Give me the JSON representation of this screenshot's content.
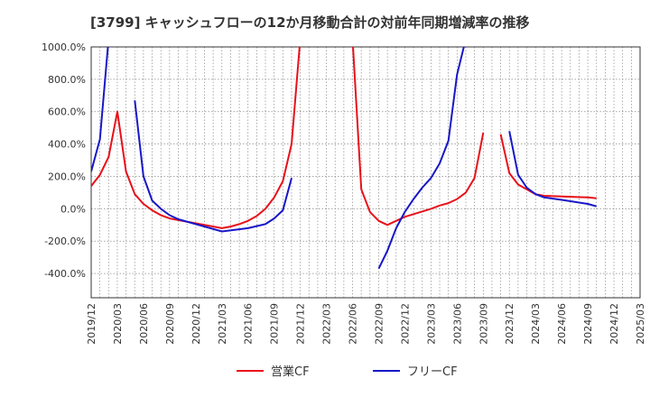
{
  "title": "[3799]  キャッシュフローの12か月移動合計の対前年同期増減率の推移",
  "chart_data": {
    "type": "line",
    "title": "[3799]  キャッシュフローの12か月移動合計の対前年同期増減率の推移",
    "xlabel": "",
    "ylabel": "",
    "grid": true,
    "legend_position": "bottom",
    "ylim": [
      -550,
      1000
    ],
    "y_ticks": [
      1000,
      800,
      600,
      400,
      200,
      0,
      -200,
      -400
    ],
    "y_tick_labels": [
      "1000.0%",
      "800.0%",
      "600.0%",
      "400.0%",
      "200.0%",
      "0.0%",
      "-200.0%",
      "-400.0%"
    ],
    "x_ticks": [
      "2019/12",
      "2020/03",
      "2020/06",
      "2020/09",
      "2020/12",
      "2021/03",
      "2021/06",
      "2021/09",
      "2021/12",
      "2022/03",
      "2022/06",
      "2022/09",
      "2022/12",
      "2023/03",
      "2023/06",
      "2023/09",
      "2023/12",
      "2024/03",
      "2024/06",
      "2024/09",
      "2024/12",
      "2025/03"
    ],
    "x_start": "2019/12",
    "x_end": "2025/03",
    "series": [
      {
        "name": "営業CF",
        "color": "#e8101a",
        "points": [
          [
            "2019/12",
            140
          ],
          [
            "2020/01",
            210
          ],
          [
            "2020/02",
            320
          ],
          [
            "2020/03",
            600
          ],
          [
            "2020/04",
            230
          ],
          [
            "2020/05",
            90
          ],
          [
            "2020/06",
            30
          ],
          [
            "2020/07",
            -10
          ],
          [
            "2020/08",
            -40
          ],
          [
            "2020/09",
            -60
          ],
          [
            "2020/12",
            -90
          ],
          [
            "2021/03",
            -120
          ],
          [
            "2021/04",
            -110
          ],
          [
            "2021/05",
            -95
          ],
          [
            "2021/06",
            -75
          ],
          [
            "2021/07",
            -45
          ],
          [
            "2021/08",
            0
          ],
          [
            "2021/09",
            70
          ],
          [
            "2021/10",
            170
          ],
          [
            "2021/11",
            400
          ],
          [
            "2021/12",
            1050
          ],
          null,
          [
            "2022/06",
            1050
          ],
          [
            "2022/07",
            120
          ],
          [
            "2022/08",
            -20
          ],
          [
            "2022/09",
            -75
          ],
          [
            "2022/10",
            -100
          ],
          [
            "2022/12",
            -50
          ],
          [
            "2023/03",
            0
          ],
          [
            "2023/04",
            20
          ],
          [
            "2023/05",
            35
          ],
          [
            "2023/06",
            60
          ],
          [
            "2023/07",
            100
          ],
          [
            "2023/08",
            190
          ],
          [
            "2023/09",
            470
          ],
          null,
          [
            "2023/11",
            460
          ],
          [
            "2023/12",
            220
          ],
          [
            "2024/01",
            150
          ],
          [
            "2024/03",
            90
          ],
          [
            "2024/04",
            80
          ],
          [
            "2024/09",
            70
          ],
          [
            "2024/10",
            65
          ]
        ]
      },
      {
        "name": "フリーCF",
        "color": "#1717c8",
        "points": [
          [
            "2019/12",
            230
          ],
          [
            "2020/01",
            430
          ],
          [
            "2020/02",
            1050
          ],
          null,
          [
            "2020/05",
            670
          ],
          [
            "2020/06",
            200
          ],
          [
            "2020/07",
            50
          ],
          [
            "2020/08",
            0
          ],
          [
            "2020/09",
            -40
          ],
          [
            "2020/10",
            -65
          ],
          [
            "2021/03",
            -140
          ],
          [
            "2021/06",
            -120
          ],
          [
            "2021/08",
            -95
          ],
          [
            "2021/09",
            -60
          ],
          [
            "2021/10",
            -10
          ],
          [
            "2021/11",
            190
          ],
          null,
          [
            "2022/09",
            -370
          ],
          [
            "2022/10",
            -260
          ],
          [
            "2022/11",
            -120
          ],
          [
            "2022/12",
            -20
          ],
          [
            "2023/01",
            60
          ],
          [
            "2023/02",
            130
          ],
          [
            "2023/03",
            190
          ],
          [
            "2023/04",
            280
          ],
          [
            "2023/05",
            420
          ],
          [
            "2023/06",
            830
          ],
          [
            "2023/07",
            1050
          ],
          null,
          [
            "2023/12",
            480
          ],
          [
            "2024/01",
            210
          ],
          [
            "2024/02",
            130
          ],
          [
            "2024/03",
            90
          ],
          [
            "2024/04",
            70
          ],
          [
            "2024/06",
            55
          ],
          [
            "2024/09",
            30
          ],
          [
            "2024/10",
            15
          ]
        ]
      }
    ]
  }
}
